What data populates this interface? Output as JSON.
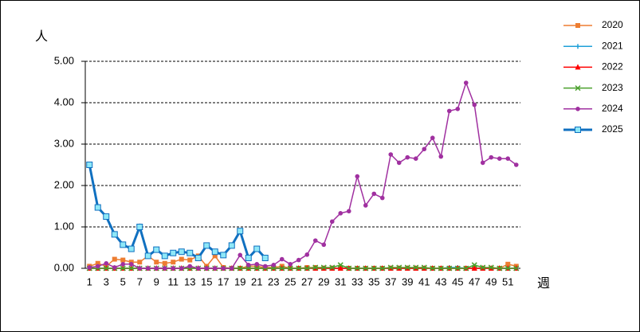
{
  "chart_data": {
    "type": "line",
    "y_label": "人",
    "x_label": "週",
    "categories": [
      "1",
      null,
      "3",
      null,
      "5",
      null,
      "7",
      null,
      "9",
      null,
      "11",
      null,
      "13",
      null,
      "15",
      null,
      "17",
      null,
      "19",
      null,
      "21",
      null,
      "23",
      null,
      "25",
      null,
      "27",
      null,
      "29",
      null,
      "31",
      null,
      "33",
      null,
      "35",
      null,
      "37",
      null,
      "39",
      null,
      "41",
      null,
      "43",
      null,
      "45",
      null,
      "47",
      null,
      "49",
      null,
      "51",
      null
    ],
    "ylim": [
      0,
      5
    ],
    "yticks": [
      {
        "value": 0,
        "label": "0.00"
      },
      {
        "value": 1,
        "label": "1.00"
      },
      {
        "value": 2,
        "label": "2.00"
      },
      {
        "value": 3,
        "label": "3.00"
      },
      {
        "value": 4,
        "label": "4.00"
      },
      {
        "value": 5,
        "label": "5.00"
      }
    ],
    "grid": true,
    "legend": "right",
    "series": [
      {
        "name": "2020",
        "color": "#ed7d31",
        "marker": "square",
        "values": [
          0.05,
          0.12,
          0.05,
          0.22,
          0.2,
          0.15,
          0.15,
          0.3,
          0.15,
          0.12,
          0.15,
          0.22,
          0.2,
          0.3,
          0.05,
          0.3,
          0.02,
          0,
          0,
          0.05,
          0.05,
          0.02,
          0.02,
          0.05,
          0,
          0,
          0.02,
          0.02,
          0,
          0,
          0,
          0,
          0,
          0,
          0,
          0,
          0,
          0,
          0,
          0,
          0,
          0,
          0,
          0,
          0,
          0,
          0,
          0,
          0,
          0,
          0.1,
          0.05
        ]
      },
      {
        "name": "2021",
        "color": "#1fa0d8",
        "marker": "plus",
        "values": [
          0,
          0,
          0,
          0,
          0,
          0,
          0,
          0,
          0,
          0,
          0,
          0,
          0,
          0,
          0,
          0,
          0,
          0,
          0,
          0,
          0,
          0,
          0,
          0,
          0,
          0,
          0,
          0,
          0,
          0,
          0,
          0,
          0,
          0,
          0,
          0,
          0,
          0,
          0,
          0,
          0,
          0,
          0,
          0.02,
          0.02,
          0,
          0,
          0,
          0,
          0,
          0,
          0
        ]
      },
      {
        "name": "2022",
        "color": "#ff0000",
        "marker": "triangle",
        "values": [
          0,
          0,
          0,
          0,
          0,
          0,
          0,
          0,
          0,
          0,
          0,
          0,
          0,
          0,
          0,
          0,
          0,
          0,
          0,
          0,
          0,
          0,
          0,
          0,
          0,
          0,
          0,
          0,
          0,
          0,
          0,
          0,
          0,
          0,
          0,
          0,
          0,
          0,
          0,
          0,
          0,
          0,
          0,
          0,
          0,
          0,
          0,
          0,
          0,
          0,
          0,
          0
        ]
      },
      {
        "name": "2023",
        "color": "#4aa02c",
        "marker": "cross",
        "values": [
          0,
          0,
          0,
          0,
          0,
          0,
          0,
          0,
          0,
          0,
          0,
          0,
          0,
          0,
          0,
          0,
          0,
          0,
          0,
          0,
          0,
          0,
          0,
          0,
          0,
          0,
          0,
          0.02,
          0.02,
          0.02,
          0.08,
          0,
          0,
          0,
          0,
          0,
          0.02,
          0.02,
          0.02,
          0.02,
          0.02,
          0,
          0,
          0,
          0,
          0,
          0.08,
          0.02,
          0.02,
          0,
          0,
          0
        ]
      },
      {
        "name": "2024",
        "color": "#a030a0",
        "marker": "circle",
        "values": [
          0.02,
          0.05,
          0.12,
          0.02,
          0.1,
          0.1,
          0,
          0,
          0,
          0,
          0,
          0,
          0.05,
          0,
          0,
          0,
          0,
          0,
          0.32,
          0.08,
          0.1,
          0.05,
          0.08,
          0.22,
          0.1,
          0.2,
          0.33,
          0.67,
          0.57,
          1.13,
          1.33,
          1.38,
          2.22,
          1.52,
          1.8,
          1.7,
          2.75,
          2.55,
          2.68,
          2.65,
          2.88,
          3.15,
          2.7,
          3.8,
          3.85,
          4.48,
          3.95,
          2.55,
          2.68,
          2.65,
          2.65,
          2.5
        ]
      },
      {
        "name": "2025",
        "color": "#1070c0",
        "marker": "square-light",
        "line_width": 3,
        "values": [
          2.5,
          1.47,
          1.25,
          0.82,
          0.57,
          0.47,
          1.0,
          0.3,
          0.45,
          0.3,
          0.37,
          0.4,
          0.37,
          0.25,
          0.55,
          0.4,
          0.32,
          0.55,
          0.9,
          0.25,
          0.47,
          0.25,
          null,
          null,
          null,
          null,
          null,
          null,
          null,
          null,
          null,
          null,
          null,
          null,
          null,
          null,
          null,
          null,
          null,
          null,
          null,
          null,
          null,
          null,
          null,
          null,
          null,
          null,
          null,
          null,
          null,
          null
        ]
      }
    ]
  }
}
